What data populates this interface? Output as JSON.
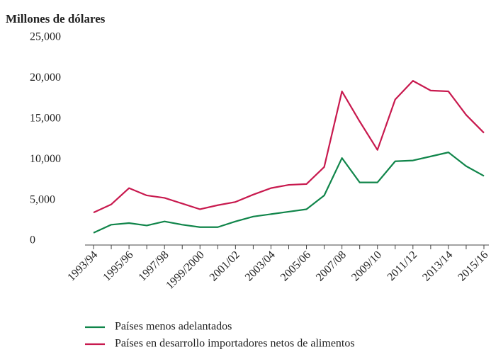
{
  "chart_data": {
    "type": "line",
    "title": "Millones de dólares",
    "categories": [
      "1993/94",
      null,
      "1995/96",
      null,
      "1997/98",
      null,
      "1999/2000",
      null,
      "2001/02",
      null,
      "2003/04",
      null,
      "2005/06",
      null,
      "2007/08",
      null,
      "2009/10",
      null,
      "2011/12",
      null,
      "2013/14",
      null,
      "2015/16"
    ],
    "series": [
      {
        "name": "Países menos adelantados",
        "color": "#10854a",
        "values": [
          1500,
          2500,
          2700,
          2400,
          2900,
          2500,
          2200,
          2200,
          2900,
          3500,
          3800,
          4100,
          4400,
          6100,
          10700,
          7700,
          7700,
          10300,
          10400,
          10900,
          11400,
          9700,
          8500
        ]
      },
      {
        "name": "Países en desarrollo importadores netos de alimentos",
        "color": "#c8194e",
        "values": [
          4000,
          5000,
          7000,
          6100,
          5800,
          5100,
          4400,
          4900,
          5300,
          6200,
          7000,
          7400,
          7500,
          9600,
          18900,
          15200,
          11700,
          17900,
          20200,
          19000,
          18900,
          16000,
          13800
        ]
      }
    ],
    "ylim": [
      0,
      25000
    ],
    "yticks": [
      0,
      {
        "value": 5000,
        "label": "5,000"
      },
      {
        "value": 10000,
        "label": "10,000"
      },
      {
        "value": 15000,
        "label": "15,000"
      },
      {
        "value": 20000,
        "label": "20,000"
      },
      {
        "value": 25000,
        "label": "25,000"
      }
    ],
    "grid": false
  }
}
